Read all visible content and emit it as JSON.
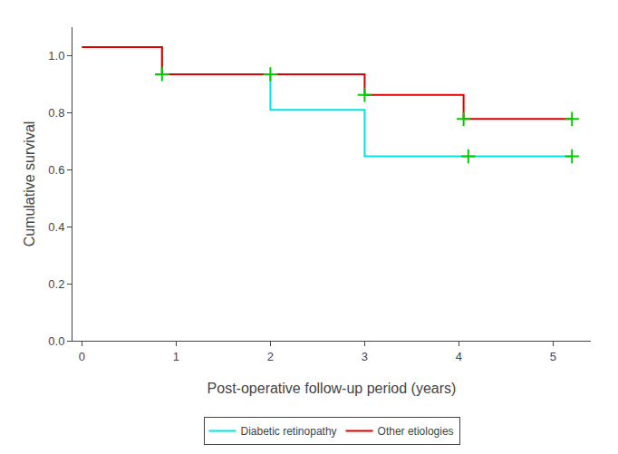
{
  "chart_data": {
    "type": "line",
    "xlabel": "Post-operative follow-up period (years)",
    "ylabel": "Cumulative survival",
    "xlim": [
      -0.1,
      5.4
    ],
    "ylim": [
      0.0,
      1.1
    ],
    "xticks": [
      0,
      1,
      2,
      3,
      4,
      5
    ],
    "yticks": [
      {
        "value": 0.0,
        "label": "0.0"
      },
      0.2,
      0.4,
      0.6,
      0.8,
      {
        "value": 1.0,
        "label": "1.0"
      }
    ],
    "grid": false,
    "legend": "bottom",
    "series": [
      {
        "name": "Diabetic retinopathy",
        "color": "#00e5e5",
        "line_style": "solid",
        "x": [
          0,
          0.85,
          0.85,
          2.0,
          2.0,
          3.0,
          3.0,
          5.2
        ],
        "values": [
          1.03,
          1.03,
          0.935,
          0.935,
          0.81,
          0.81,
          0.647,
          0.647
        ]
      },
      {
        "name": "Other etiologies",
        "color": "#dd0000",
        "line_style": "solid",
        "x": [
          0,
          0.85,
          0.85,
          2.0,
          2.0,
          3.0,
          3.0,
          4.05,
          4.05,
          5.2
        ],
        "values": [
          1.03,
          1.03,
          0.935,
          0.935,
          0.935,
          0.935,
          0.862,
          0.862,
          0.778,
          0.778
        ]
      },
      {
        "type": "scatter",
        "marker": "cross",
        "color": "#00cc00",
        "x": [
          0.85,
          2.0,
          4.1,
          5.2
        ],
        "values": [
          0.935,
          0.935,
          0.647,
          0.647
        ]
      },
      {
        "type": "scatter",
        "marker": "cross",
        "color": "#00cc00",
        "x": [
          3.0,
          4.05,
          5.2
        ],
        "values": [
          0.862,
          0.778,
          0.778
        ]
      }
    ]
  }
}
